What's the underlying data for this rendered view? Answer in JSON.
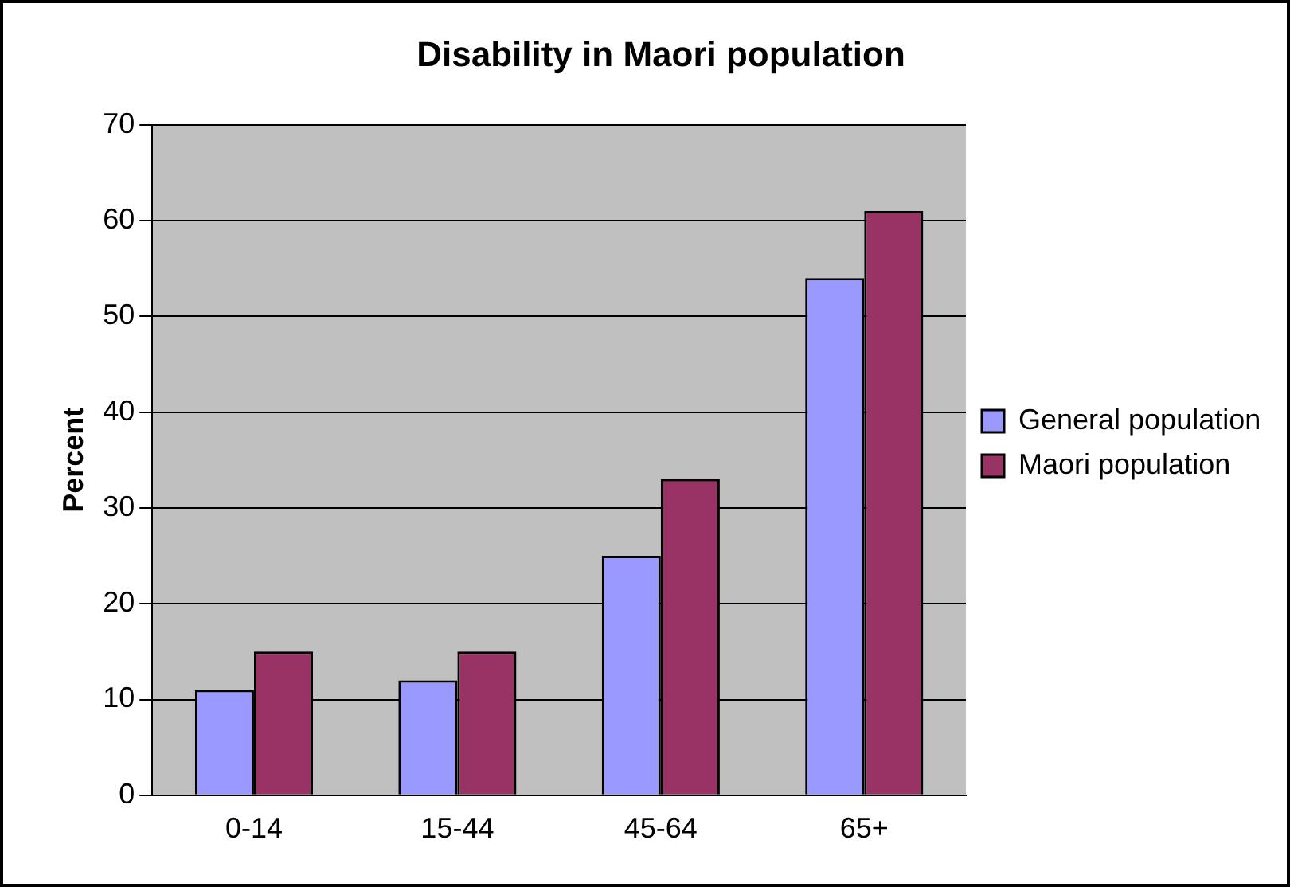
{
  "chart_data": {
    "type": "bar",
    "title": "Disability in Maori population",
    "ylabel": "Percent",
    "categories": [
      "0-14",
      "15-44",
      "45-64",
      "65+"
    ],
    "series": [
      {
        "name": "General population",
        "color": "#9999ff",
        "values": [
          11,
          12,
          25,
          54
        ]
      },
      {
        "name": "Maori population",
        "color": "#993366",
        "values": [
          15,
          15,
          33,
          61
        ]
      }
    ],
    "ylim": [
      0,
      70
    ],
    "yticks": [
      0,
      10,
      20,
      30,
      40,
      50,
      60,
      70
    ],
    "grid": "y",
    "legend": "right"
  }
}
